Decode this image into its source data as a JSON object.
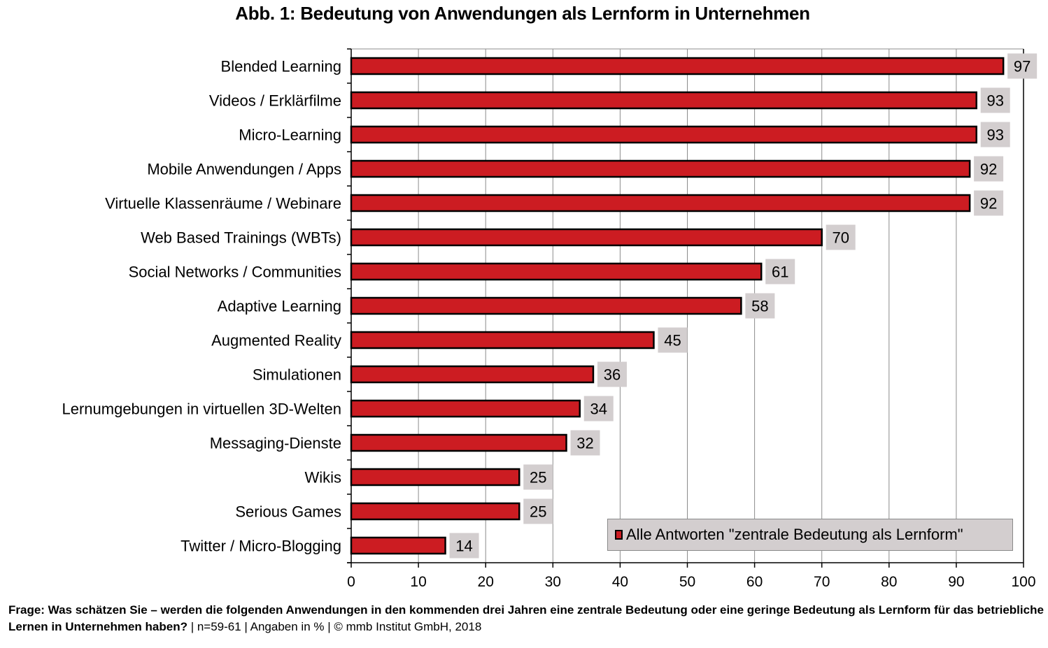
{
  "chart_data": {
    "type": "bar",
    "orientation": "horizontal",
    "title": "Abb. 1: Bedeutung von Anwendungen als Lernform in Unternehmen",
    "categories": [
      "Blended Learning",
      "Videos / Erklärfilme",
      "Micro-Learning",
      "Mobile Anwendungen / Apps",
      "Virtuelle Klassenräume / Webinare",
      "Web Based Trainings (WBTs)",
      "Social Networks / Communities",
      "Adaptive Learning",
      "Augmented Reality",
      "Simulationen",
      "Lernumgebungen in virtuellen 3D-Welten",
      "Messaging-Dienste",
      "Wikis",
      "Serious Games",
      "Twitter / Micro-Blogging"
    ],
    "series": [
      {
        "name": "Alle Antworten \"zentrale Bedeutung als Lernform\"",
        "color": "#cc1c22",
        "values": [
          97,
          93,
          93,
          92,
          92,
          70,
          61,
          58,
          45,
          36,
          34,
          32,
          25,
          25,
          14
        ]
      }
    ],
    "xlabel": "",
    "ylabel": "",
    "xlim": [
      0,
      100
    ],
    "xticks": [
      0,
      10,
      20,
      30,
      40,
      50,
      60,
      70,
      80,
      90,
      100
    ],
    "grid": "vertical",
    "legend_position": "bottom-right (inside plot)",
    "data_label_background": "#d3cecf"
  },
  "footnote": {
    "question": "Frage: Was schätzen Sie – werden die folgenden Anwendungen in den kommenden drei Jahren eine zentrale Bedeutung oder eine geringe Bedeutung als Lernform für das betriebliche Lernen in Unternehmen haben?",
    "meta": " | n=59-61 | Angaben in % | © mmb Institut GmbH, 2018"
  }
}
